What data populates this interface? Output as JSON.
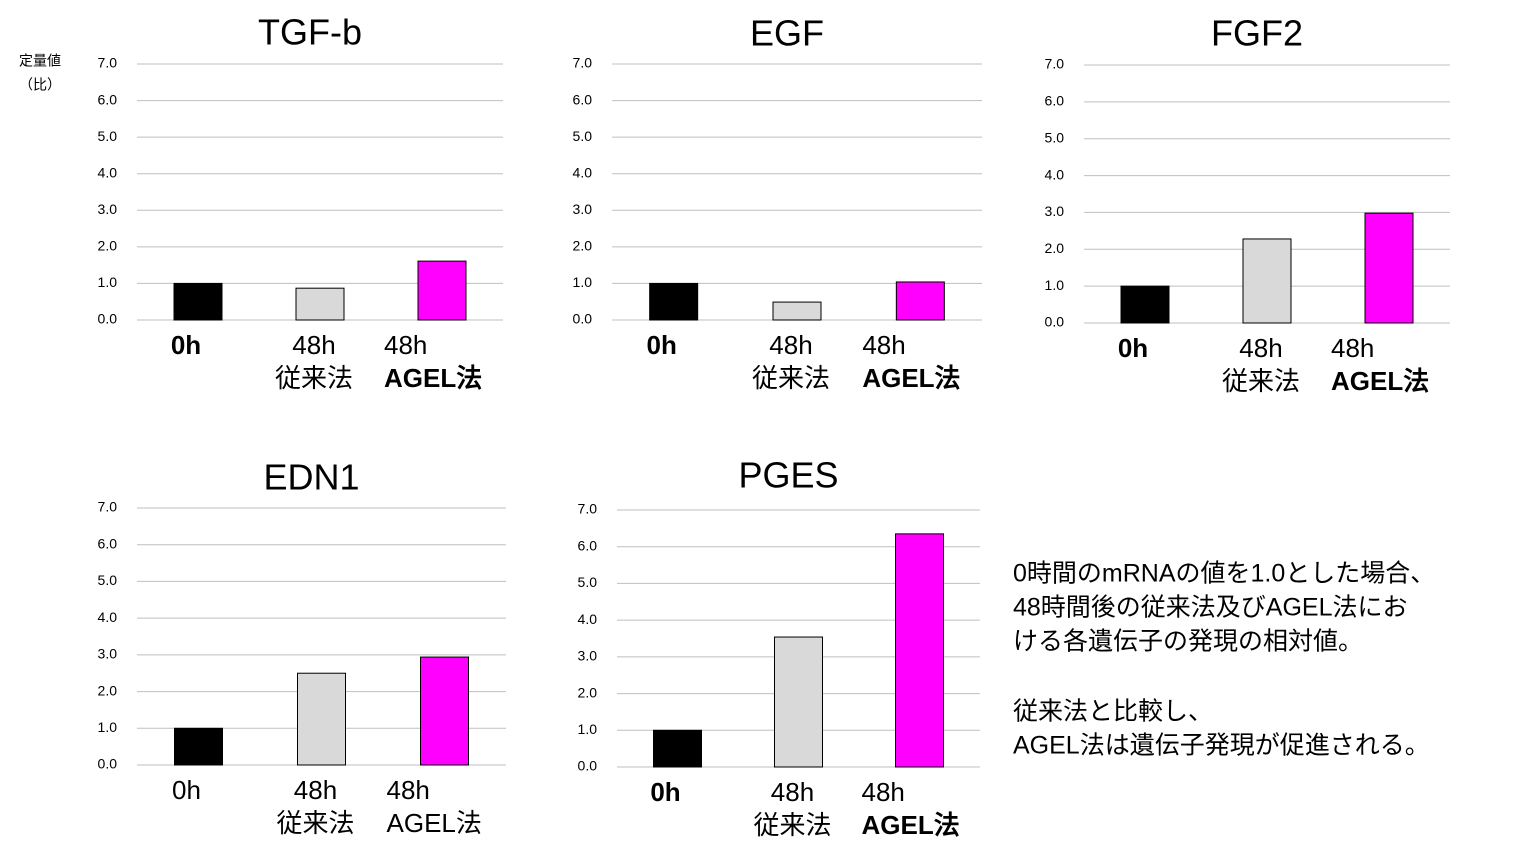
{
  "chart_data": [
    {
      "type": "bar",
      "title": "TGF-b",
      "ylabel": [
        "定量値",
        "（比）"
      ],
      "categories": [
        [
          "0h"
        ],
        [
          "48h",
          "従来法"
        ],
        [
          "48h",
          "AGEL法"
        ]
      ],
      "label_bold": [
        true,
        false,
        true
      ],
      "values": [
        1.0,
        0.87,
        1.61
      ],
      "colors": [
        "#000000",
        "#d9d9d9",
        "#ff00ff"
      ],
      "ylim": [
        0,
        7
      ],
      "yticks": [
        {
          "value": 0,
          "label": "0.0"
        },
        {
          "value": 1,
          "label": "1.0"
        },
        {
          "value": 2,
          "label": "2.0"
        },
        {
          "value": 3,
          "label": "3.0"
        },
        {
          "value": 4,
          "label": "4.0"
        },
        {
          "value": 5,
          "label": "5.0"
        },
        {
          "value": 6,
          "label": "6.0"
        },
        {
          "value": 7,
          "label": "7.0"
        }
      ],
      "grid": true
    },
    {
      "type": "bar",
      "title": "EGF",
      "categories": [
        [
          "0h"
        ],
        [
          "48h",
          "従来法"
        ],
        [
          "48h",
          "AGEL法"
        ]
      ],
      "label_bold": [
        true,
        false,
        true
      ],
      "values": [
        1.0,
        0.49,
        1.04
      ],
      "colors": [
        "#000000",
        "#d9d9d9",
        "#ff00ff"
      ],
      "ylim": [
        0,
        7
      ],
      "yticks": [
        {
          "value": 0,
          "label": "0.0"
        },
        {
          "value": 1,
          "label": "1.0"
        },
        {
          "value": 2,
          "label": "2.0"
        },
        {
          "value": 3,
          "label": "3.0"
        },
        {
          "value": 4,
          "label": "4.0"
        },
        {
          "value": 5,
          "label": "5.0"
        },
        {
          "value": 6,
          "label": "6.0"
        },
        {
          "value": 7,
          "label": "7.0"
        }
      ],
      "grid": true
    },
    {
      "type": "bar",
      "title": "FGF2",
      "categories": [
        [
          "0h"
        ],
        [
          "48h",
          "従来法"
        ],
        [
          "48h",
          "AGEL法"
        ]
      ],
      "label_bold": [
        true,
        false,
        true
      ],
      "values": [
        1.0,
        2.28,
        2.98
      ],
      "colors": [
        "#000000",
        "#d9d9d9",
        "#ff00ff"
      ],
      "ylim": [
        0,
        7
      ],
      "yticks": [
        {
          "value": 0,
          "label": "0.0"
        },
        {
          "value": 1,
          "label": "1.0"
        },
        {
          "value": 2,
          "label": "2.0"
        },
        {
          "value": 3,
          "label": "3.0"
        },
        {
          "value": 4,
          "label": "4.0"
        },
        {
          "value": 5,
          "label": "5.0"
        },
        {
          "value": 6,
          "label": "6.0"
        },
        {
          "value": 7,
          "label": "7.0"
        }
      ],
      "grid": true
    },
    {
      "type": "bar",
      "title": "EDN1",
      "categories": [
        [
          "0h"
        ],
        [
          "48h",
          "従来法"
        ],
        [
          "48h",
          "AGEL法"
        ]
      ],
      "label_bold": [
        false,
        false,
        false
      ],
      "values": [
        1.0,
        2.5,
        2.94
      ],
      "colors": [
        "#000000",
        "#d9d9d9",
        "#ff00ff"
      ],
      "ylim": [
        0,
        7
      ],
      "yticks": [
        {
          "value": 0,
          "label": "0.0"
        },
        {
          "value": 1,
          "label": "1.0"
        },
        {
          "value": 2,
          "label": "2.0"
        },
        {
          "value": 3,
          "label": "3.0"
        },
        {
          "value": 4,
          "label": "4.0"
        },
        {
          "value": 5,
          "label": "5.0"
        },
        {
          "value": 6,
          "label": "6.0"
        },
        {
          "value": 7,
          "label": "7.0"
        }
      ],
      "grid": true
    },
    {
      "type": "bar",
      "title": "PGES",
      "categories": [
        [
          "0h"
        ],
        [
          "48h",
          "従来法"
        ],
        [
          "48h",
          "AGEL法"
        ]
      ],
      "label_bold": [
        true,
        false,
        true
      ],
      "values": [
        1.0,
        3.54,
        6.35
      ],
      "colors": [
        "#000000",
        "#d9d9d9",
        "#ff00ff"
      ],
      "ylim": [
        0,
        7
      ],
      "yticks": [
        {
          "value": 0,
          "label": "0.0"
        },
        {
          "value": 1,
          "label": "1.0"
        },
        {
          "value": 2,
          "label": "2.0"
        },
        {
          "value": 3,
          "label": "3.0"
        },
        {
          "value": 4,
          "label": "4.0"
        },
        {
          "value": 5,
          "label": "5.0"
        },
        {
          "value": 6,
          "label": "6.0"
        },
        {
          "value": 7,
          "label": "7.0"
        }
      ],
      "grid": true
    }
  ],
  "note": [
    [
      "0時間のmRNAの値を1.0とした場合、",
      "48時間後の従来法及びAGEL法にお",
      "ける各遺伝子の発現の相対値。"
    ],
    [
      "従来法と比較し、",
      "AGEL法は遺伝子発現が促進される。"
    ]
  ]
}
